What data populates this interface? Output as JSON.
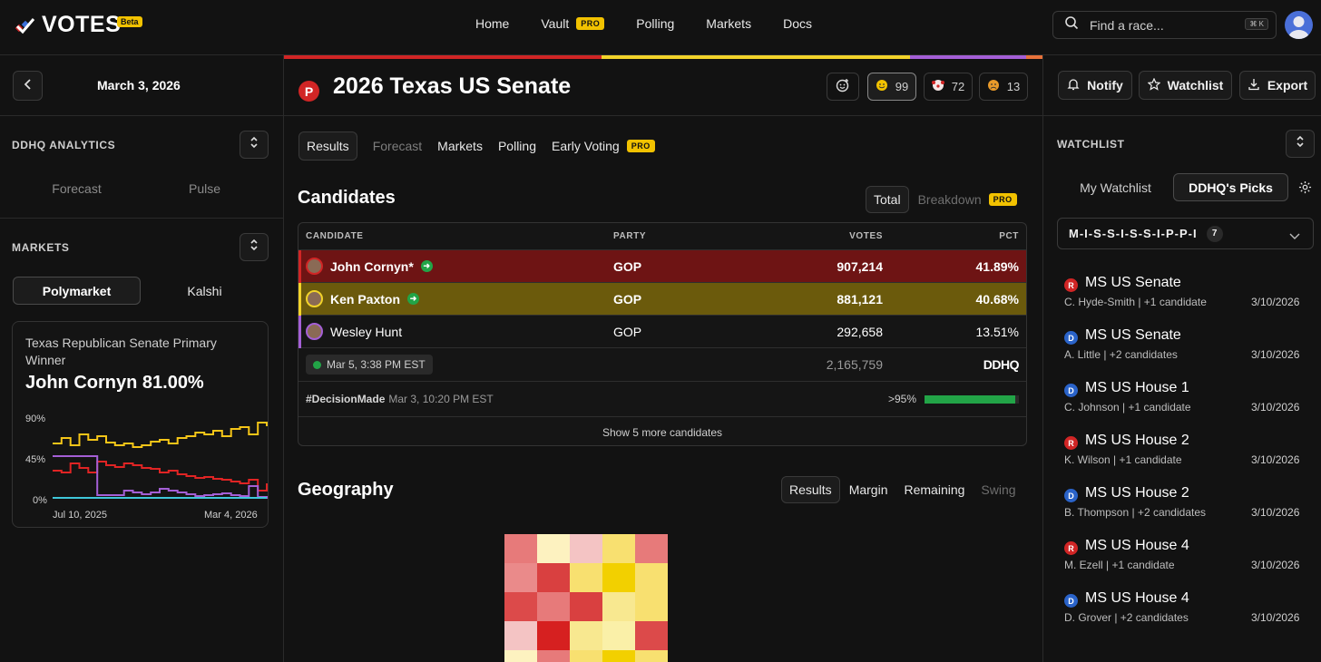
{
  "app": {
    "name": "VOTES",
    "beta": "Beta"
  },
  "nav": {
    "items": [
      {
        "label": "Home"
      },
      {
        "label": "Vault",
        "badge": "PRO"
      },
      {
        "label": "Polling"
      },
      {
        "label": "Markets"
      },
      {
        "label": "Docs"
      }
    ]
  },
  "search": {
    "placeholder": "Find a race...",
    "shortcut": "⌘ K"
  },
  "left": {
    "date": "March 3, 2026",
    "analytics": {
      "heading": "DDHQ ANALYTICS",
      "tabs": [
        "Forecast",
        "Pulse"
      ]
    },
    "markets": {
      "heading": "MARKETS",
      "tabs": [
        "Polymarket",
        "Kalshi"
      ],
      "active_tab": "Polymarket",
      "card": {
        "question": "Texas Republican Senate Primary Winner",
        "headline": "John Cornyn 81.00%",
        "chart_data": {
          "type": "line",
          "yticks": [
            "90%",
            "45%",
            "0%"
          ],
          "ylim": [
            0,
            90
          ],
          "xticks": [
            "Jul 10, 2025",
            "Mar 4, 2026"
          ],
          "series": [
            {
              "color": "#f5c518",
              "values": [
                62,
                68,
                60,
                72,
                66,
                70,
                63,
                60,
                62,
                58,
                60,
                64,
                66,
                62,
                68,
                70,
                74,
                72,
                76,
                70,
                78,
                80,
                72,
                85,
                81
              ]
            },
            {
              "color": "#e02424",
              "values": [
                32,
                30,
                40,
                35,
                30,
                42,
                38,
                36,
                40,
                38,
                35,
                34,
                30,
                32,
                28,
                26,
                24,
                25,
                23,
                22,
                20,
                18,
                22,
                10,
                18
              ]
            },
            {
              "color": "#a45fd6",
              "values": [
                48,
                48,
                48,
                48,
                48,
                5,
                5,
                5,
                10,
                8,
                6,
                8,
                12,
                10,
                8,
                6,
                4,
                5,
                6,
                7,
                5,
                4,
                15,
                3,
                1
              ]
            },
            {
              "color": "#3fc7d9",
              "values": [
                2,
                2,
                2,
                2,
                2,
                2,
                2,
                2,
                2,
                2,
                2,
                2,
                2,
                2,
                2,
                2,
                2,
                2,
                2,
                2,
                2,
                2,
                2,
                2,
                2
              ]
            }
          ]
        }
      }
    }
  },
  "race": {
    "party_badge": "P",
    "title": "2026 Texas US Senate",
    "reactions": [
      {
        "icon": "smile-plus",
        "count": ""
      },
      {
        "icon": "smile",
        "count": "99"
      },
      {
        "icon": "clown",
        "count": "72"
      },
      {
        "icon": "sad",
        "count": "13"
      }
    ],
    "colorbar": [
      "#d12525",
      "#f2d32a",
      "#a45fd6",
      "#e8723a"
    ],
    "tabs": [
      {
        "label": "Results",
        "state": "active"
      },
      {
        "label": "Forecast",
        "state": "dim"
      },
      {
        "label": "Markets",
        "state": "normal"
      },
      {
        "label": "Polling",
        "state": "normal"
      },
      {
        "label": "Early Voting",
        "state": "normal",
        "badge": "PRO"
      }
    ],
    "candidates": {
      "heading": "Candidates",
      "view": [
        "Total",
        "Breakdown"
      ],
      "view_badge": "PRO",
      "columns": [
        "CANDIDATE",
        "PARTY",
        "VOTES",
        "PCT"
      ],
      "rows": [
        {
          "name": "John Cornyn*",
          "party": "GOP",
          "votes": "907,214",
          "pct": "41.89%",
          "advancing": true,
          "bg": "#6e1414",
          "stripe": "#d12525"
        },
        {
          "name": "Ken Paxton",
          "party": "GOP",
          "votes": "881,121",
          "pct": "40.68%",
          "advancing": true,
          "bg": "#6b5a0c",
          "stripe": "#f2d32a"
        },
        {
          "name": "Wesley Hunt",
          "party": "GOP",
          "votes": "292,658",
          "pct": "13.51%",
          "advancing": false,
          "bg": "#151515",
          "stripe": "#a45fd6"
        }
      ],
      "updated": "Mar 5, 3:38 PM EST",
      "total_votes": "2,165,759",
      "source": "DDHQ",
      "decision_tag": "#DecisionMade",
      "decision_time": "Mar 3, 10:20 PM EST",
      "reporting": ">95%",
      "reporting_fraction": 0.96,
      "show_more": "Show 5 more candidates"
    },
    "geography": {
      "heading": "Geography",
      "tabs": [
        "Results",
        "Margin",
        "Remaining",
        "Swing"
      ]
    }
  },
  "right": {
    "actions": [
      "Notify",
      "Watchlist",
      "Export"
    ],
    "heading": "WATCHLIST",
    "tabs": [
      "My Watchlist",
      "DDHQ's Picks"
    ],
    "active_tab": "DDHQ's Picks",
    "select": {
      "label": "M-I-S-S-I-S-S-I-P-P-I",
      "count": "7"
    },
    "items": [
      {
        "party": "R",
        "title": "MS US Senate",
        "sub": "C. Hyde-Smith | +1 candidate",
        "date": "3/10/2026"
      },
      {
        "party": "D",
        "title": "MS US Senate",
        "sub": "A. Little | +2 candidates",
        "date": "3/10/2026"
      },
      {
        "party": "D",
        "title": "MS US House 1",
        "sub": "C. Johnson | +1 candidate",
        "date": "3/10/2026"
      },
      {
        "party": "R",
        "title": "MS US House 2",
        "sub": "K. Wilson | +1 candidate",
        "date": "3/10/2026"
      },
      {
        "party": "D",
        "title": "MS US House 2",
        "sub": "B. Thompson | +2 candidates",
        "date": "3/10/2026"
      },
      {
        "party": "R",
        "title": "MS US House 4",
        "sub": "M. Ezell | +1 candidate",
        "date": "3/10/2026"
      },
      {
        "party": "D",
        "title": "MS US House 4",
        "sub": "D. Grover | +2 candidates",
        "date": "3/10/2026"
      }
    ]
  }
}
